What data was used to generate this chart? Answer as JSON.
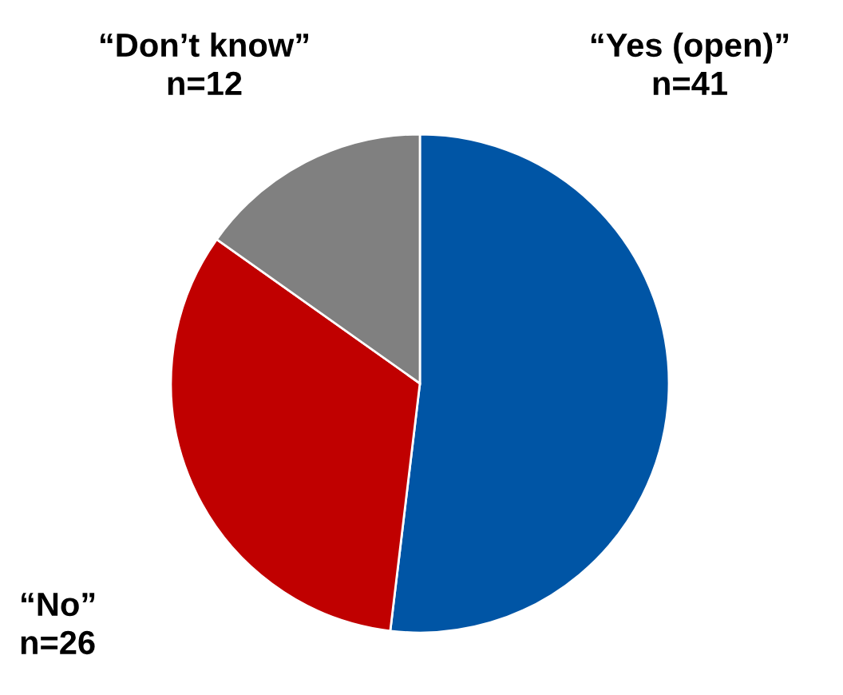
{
  "chart_data": {
    "type": "pie",
    "categories": [
      "“Yes (open)”",
      "“No”",
      "“Don’t know”"
    ],
    "values": [
      41,
      26,
      12
    ],
    "value_labels": [
      "n=41",
      "n=26",
      "n=12"
    ],
    "colors": [
      "#0055a5",
      "#c00000",
      "#808080"
    ]
  }
}
